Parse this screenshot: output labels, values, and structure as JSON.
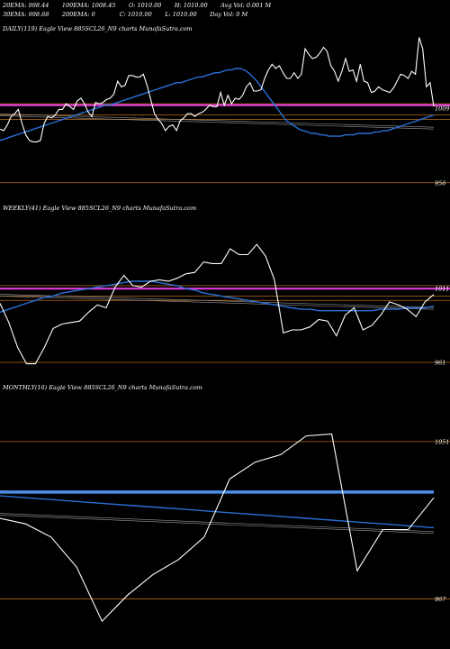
{
  "header": {
    "row1": [
      "20EMA: 998.44",
      "100EMA: 1008.45",
      "O: 1010.00",
      "H: 1010.00",
      "Avg Vol: 0.001 M"
    ],
    "row2": [
      "30EMA: 998.68",
      "200EMA: 0",
      "C: 1010.00",
      "L: 1010.00",
      "Day Vol: 0  M"
    ]
  },
  "colors": {
    "background": "#000000",
    "price": "#ffffff",
    "ema": "#2a6fd6",
    "magenta": "#e23ce0",
    "level": "#b86a1a",
    "gray": "#999999"
  },
  "chart_data": [
    {
      "type": "line",
      "label": "DAILY(119) Eagle   View  885SCL26_N9 charts MunafaSutra.com",
      "yticks": [
        {
          "value": 1009,
          "label": "1009"
        },
        {
          "value": 956,
          "label": "956"
        }
      ],
      "ylim": [
        945,
        1060
      ],
      "levels": [
        1012,
        1004,
        1001,
        956
      ],
      "magenta_level": 1011,
      "price": [
        994,
        993,
        997,
        1003,
        1005,
        1008,
        998,
        990,
        986,
        985,
        985,
        986,
        998,
        1003,
        1002,
        1004,
        1008,
        1008,
        1012,
        1010,
        1008,
        1014,
        1016,
        1012,
        1006,
        1003,
        1013,
        1012,
        1013,
        1015,
        1016,
        1019,
        1028,
        1024,
        1025,
        1032,
        1032,
        1031,
        1031,
        1033,
        1025,
        1015,
        1005,
        1001,
        998,
        993,
        996,
        997,
        993,
        1000,
        1002,
        1005,
        1005,
        1003,
        1005,
        1006,
        1008,
        1011,
        1010,
        1010,
        1020,
        1011,
        1018,
        1012,
        1016,
        1015,
        1018,
        1024,
        1027,
        1021,
        1021,
        1022,
        1030,
        1036,
        1040,
        1037,
        1039,
        1034,
        1030,
        1030,
        1034,
        1030,
        1033,
        1051,
        1047,
        1044,
        1045,
        1048,
        1052,
        1049,
        1039,
        1035,
        1028,
        1035,
        1044,
        1035,
        1036,
        1028,
        1040,
        1028,
        1027,
        1020,
        1021,
        1024,
        1022,
        1021,
        1020,
        1023,
        1028,
        1033,
        1032,
        1030,
        1035,
        1033,
        1059,
        1051,
        1024,
        1027,
        1010
      ],
      "ema": [
        986,
        987,
        988,
        989,
        990,
        991,
        992,
        993,
        994,
        995,
        996,
        997,
        998,
        999,
        1000,
        1001,
        1002,
        1003,
        1004,
        1005,
        1006,
        1007,
        1008,
        1009,
        1010,
        1011,
        1011,
        1012,
        1013,
        1014,
        1015,
        1016,
        1017,
        1018,
        1019,
        1020,
        1021,
        1022,
        1023,
        1024,
        1025,
        1026,
        1027,
        1027,
        1028,
        1029,
        1030,
        1031,
        1031,
        1032,
        1033,
        1034,
        1034,
        1035,
        1036,
        1036,
        1037,
        1037,
        1036,
        1034,
        1031,
        1028,
        1024,
        1020,
        1016,
        1012,
        1008,
        1004,
        1000,
        998,
        996,
        994,
        993,
        992,
        991,
        991,
        990,
        990,
        989,
        989,
        989,
        989,
        990,
        990,
        990,
        991,
        991,
        991,
        991,
        992,
        992,
        993,
        993,
        994,
        995,
        996,
        997,
        998,
        999,
        1000,
        1001,
        1002,
        1003,
        1004
      ]
    },
    {
      "type": "line",
      "label": "WEEKLY(41) Eagle   View  885SCL26_N9 charts MunafaSutra.com",
      "yticks": [
        {
          "value": 1011,
          "label": "1011"
        },
        {
          "value": 961,
          "label": "961"
        }
      ],
      "ylim": [
        950,
        1060
      ],
      "levels": [
        1013,
        1006,
        1003,
        961
      ],
      "magenta_level": 1011,
      "price": [
        1001,
        988,
        971,
        960,
        960,
        971,
        984,
        987,
        988,
        989,
        995,
        1000,
        998,
        1012,
        1020,
        1013,
        1012,
        1016,
        1017,
        1016,
        1018,
        1021,
        1022,
        1029,
        1028,
        1028,
        1038,
        1034,
        1034,
        1041,
        1033,
        1017,
        981,
        983,
        983,
        985,
        990,
        989,
        979,
        993,
        998,
        983,
        986,
        993,
        1002,
        1000,
        997,
        992,
        1002,
        1007
      ],
      "ema": [
        995,
        997,
        999,
        1001,
        1003,
        1005,
        1006,
        1008,
        1009,
        1010,
        1011,
        1012,
        1013,
        1014,
        1015,
        1016,
        1016,
        1016,
        1015,
        1014,
        1013,
        1011,
        1010,
        1008,
        1007,
        1006,
        1005,
        1004,
        1003,
        1002,
        1001,
        1000,
        999,
        998,
        997,
        997,
        996,
        996,
        996,
        996,
        996,
        996,
        996,
        997,
        997,
        997,
        998,
        998,
        998,
        999
      ]
    },
    {
      "type": "line",
      "label": "MONTHLY(16) Eagle   View  885SCL26_N9 charts MunafaSutra.com",
      "yticks": [
        {
          "value": 1051,
          "label": "1051"
        },
        {
          "value": 967,
          "label": "967"
        }
      ],
      "ylim": [
        945,
        1075
      ],
      "levels": [
        1051,
        967
      ],
      "blue_level": 1024,
      "price": [
        1010,
        1007,
        1000,
        984,
        955,
        969,
        980,
        988,
        1000,
        1031,
        1040,
        1044,
        1054,
        1055,
        982,
        1004,
        1004,
        1021
      ],
      "ema": [
        1022,
        1021,
        1020,
        1019,
        1018,
        1017,
        1016,
        1015,
        1014,
        1013,
        1012,
        1011,
        1010,
        1009,
        1008,
        1007,
        1006,
        1005
      ]
    }
  ]
}
